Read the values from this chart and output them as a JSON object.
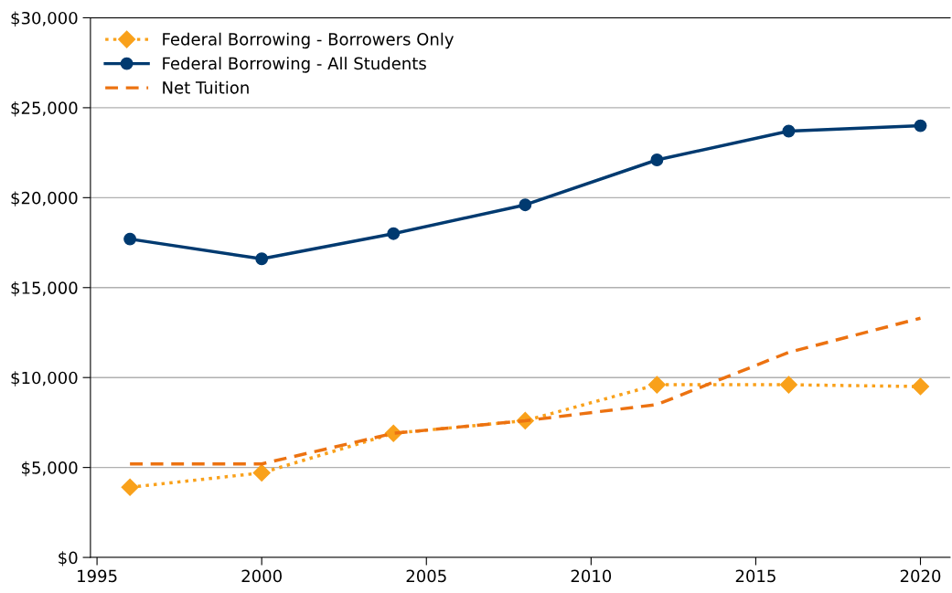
{
  "chart_data": {
    "type": "line",
    "x": [
      1996,
      2000,
      2004,
      2008,
      2012,
      2016,
      2020
    ],
    "series": [
      {
        "name": "Federal Borrowing - Borrowers Only",
        "color": "#f9a11b",
        "marker": "diamond",
        "line_style": "dotted",
        "values": [
          3900,
          4700,
          6900,
          7600,
          9600,
          9600,
          9500
        ]
      },
      {
        "name": "Federal Borrowing - All Students",
        "color": "#003a70",
        "marker": "circle",
        "line_style": "solid",
        "values": [
          17700,
          16600,
          18000,
          19600,
          22100,
          23700,
          24000
        ]
      },
      {
        "name": "Net Tuition",
        "color": "#ec7211",
        "marker": "none",
        "line_style": "dashed",
        "values": [
          5200,
          5200,
          6900,
          7600,
          8500,
          11400,
          13300
        ]
      }
    ],
    "xlim": [
      1994.8,
      2020.9
    ],
    "xticks": [
      1995,
      2000,
      2005,
      2010,
      2015,
      2020
    ],
    "ylim": [
      0,
      30000
    ],
    "yticks": [
      {
        "value": 0,
        "label": "$0"
      },
      {
        "value": 5000,
        "label": "$5,000"
      },
      {
        "value": 10000,
        "label": "$10,000"
      },
      {
        "value": 15000,
        "label": "$15,000"
      },
      {
        "value": 20000,
        "label": "$20,000"
      },
      {
        "value": 25000,
        "label": "$25,000"
      },
      {
        "value": 30000,
        "label": "$30,000"
      }
    ],
    "grid": "y",
    "legend": "top left"
  }
}
